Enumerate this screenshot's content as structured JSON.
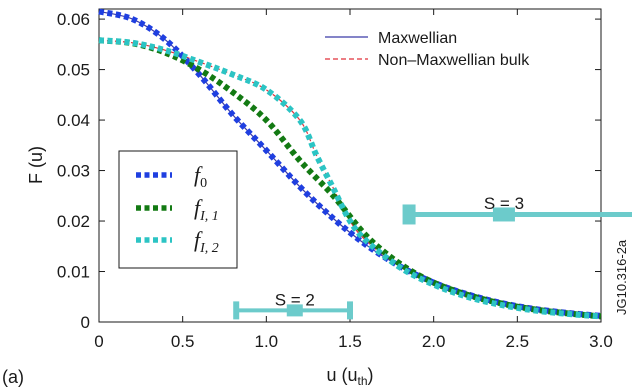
{
  "chart_data": {
    "type": "line",
    "panel_label": "(a)",
    "xlabel": "u (u",
    "xlabel_sub": "th",
    "xlabel_close": ")",
    "ylabel": "F (u)",
    "xlim": [
      0,
      3.0
    ],
    "ylim": [
      0,
      0.062
    ],
    "xticks": [
      "0",
      "0.5",
      "1.0",
      "1.5",
      "2.0",
      "2.5",
      "3.0"
    ],
    "xtick_values": [
      0,
      0.5,
      1.0,
      1.5,
      2.0,
      2.5,
      3.0
    ],
    "yticks": [
      "0",
      "0.01",
      "0.02",
      "0.03",
      "0.04",
      "0.05",
      "0.06"
    ],
    "ytick_values": [
      0,
      0.01,
      0.02,
      0.03,
      0.04,
      0.05,
      0.06
    ],
    "legend_top": {
      "position": "top-right",
      "entries": [
        {
          "label": "Maxwellian",
          "color": "#3a3aa8",
          "style": "solid"
        },
        {
          "label": "Non–Maxwellian bulk",
          "color": "#e0303a",
          "style": "dashed"
        }
      ]
    },
    "legend_left": {
      "position": "left",
      "entries": [
        {
          "base": "f",
          "sub": "0",
          "color": "#1f3fe0"
        },
        {
          "base": "f",
          "sub": "I, 1",
          "color": "#137a13"
        },
        {
          "base": "f",
          "sub": "I, 2",
          "color": "#2cc4c4"
        }
      ]
    },
    "series": [
      {
        "key": "maxwellian",
        "color": "#3a3aa8",
        "style": "solid",
        "x": [
          0,
          0.2,
          0.4,
          0.6,
          0.8,
          1.0,
          1.2,
          1.4,
          1.6,
          1.8,
          2.0,
          2.2,
          2.4,
          2.6,
          2.8,
          3.0
        ],
        "y": [
          0.0615,
          0.06,
          0.0558,
          0.049,
          0.041,
          0.034,
          0.0268,
          0.0205,
          0.0152,
          0.011,
          0.0078,
          0.0055,
          0.0038,
          0.0026,
          0.0018,
          0.0012
        ]
      },
      {
        "key": "non_maxwellian_bulk",
        "color": "#e0303a",
        "style": "dashed",
        "x": [
          0,
          0.2,
          0.4,
          0.6,
          0.8,
          1.0,
          1.2,
          1.3,
          1.4,
          1.5,
          1.6,
          1.8,
          2.0,
          2.2,
          2.4,
          2.6,
          2.8,
          3.0
        ],
        "y": [
          0.0558,
          0.0553,
          0.0538,
          0.0515,
          0.049,
          0.046,
          0.04,
          0.033,
          0.0265,
          0.02,
          0.016,
          0.0108,
          0.0074,
          0.005,
          0.0034,
          0.0023,
          0.0016,
          0.0011
        ]
      },
      {
        "key": "f0",
        "color": "#1f3fe0",
        "style": "dotted",
        "x": [
          0,
          0.2,
          0.4,
          0.6,
          0.8,
          1.0,
          1.2,
          1.4,
          1.6,
          1.8,
          2.0,
          2.2,
          2.4,
          2.6,
          2.8,
          3.0
        ],
        "y": [
          0.0615,
          0.06,
          0.0558,
          0.049,
          0.041,
          0.034,
          0.0268,
          0.0205,
          0.0152,
          0.011,
          0.0078,
          0.0055,
          0.0038,
          0.0026,
          0.0018,
          0.0012
        ]
      },
      {
        "key": "fI1",
        "color": "#137a13",
        "style": "dotted",
        "x": [
          0,
          0.2,
          0.4,
          0.6,
          0.8,
          1.0,
          1.2,
          1.4,
          1.6,
          1.8,
          2.0,
          2.2,
          2.4,
          2.6,
          2.8,
          3.0
        ],
        "y": [
          0.0558,
          0.0552,
          0.0533,
          0.05,
          0.0455,
          0.04,
          0.032,
          0.025,
          0.017,
          0.0115,
          0.0078,
          0.0054,
          0.0037,
          0.0025,
          0.0017,
          0.0011
        ]
      },
      {
        "key": "fI2",
        "color": "#2cc4c4",
        "style": "dotted",
        "x": [
          0,
          0.2,
          0.4,
          0.6,
          0.8,
          1.0,
          1.2,
          1.3,
          1.4,
          1.5,
          1.6,
          1.8,
          2.0,
          2.2,
          2.4,
          2.6,
          2.8,
          3.0
        ],
        "y": [
          0.0558,
          0.0553,
          0.0538,
          0.0515,
          0.049,
          0.046,
          0.04,
          0.033,
          0.0265,
          0.02,
          0.016,
          0.0108,
          0.0074,
          0.005,
          0.0034,
          0.0023,
          0.0016,
          0.0011
        ]
      }
    ],
    "annotations": [
      {
        "text": "S = 2",
        "x_text": 1.17,
        "y_text": 0.0045,
        "bar_x": [
          0.82,
          1.5
        ],
        "bar_center": 1.17,
        "bar_y": 0.0023,
        "capped_both_ends": true
      },
      {
        "text": "S = 3",
        "x_text": 2.42,
        "y_text": 0.0236,
        "bar_x": [
          1.85,
          3.0
        ],
        "bar_center": 2.42,
        "bar_y": 0.0213,
        "capped_both_ends": false
      }
    ],
    "annotation_color": "#6ccbcb",
    "side_label": "JG10.316-2a",
    "grid": false
  }
}
